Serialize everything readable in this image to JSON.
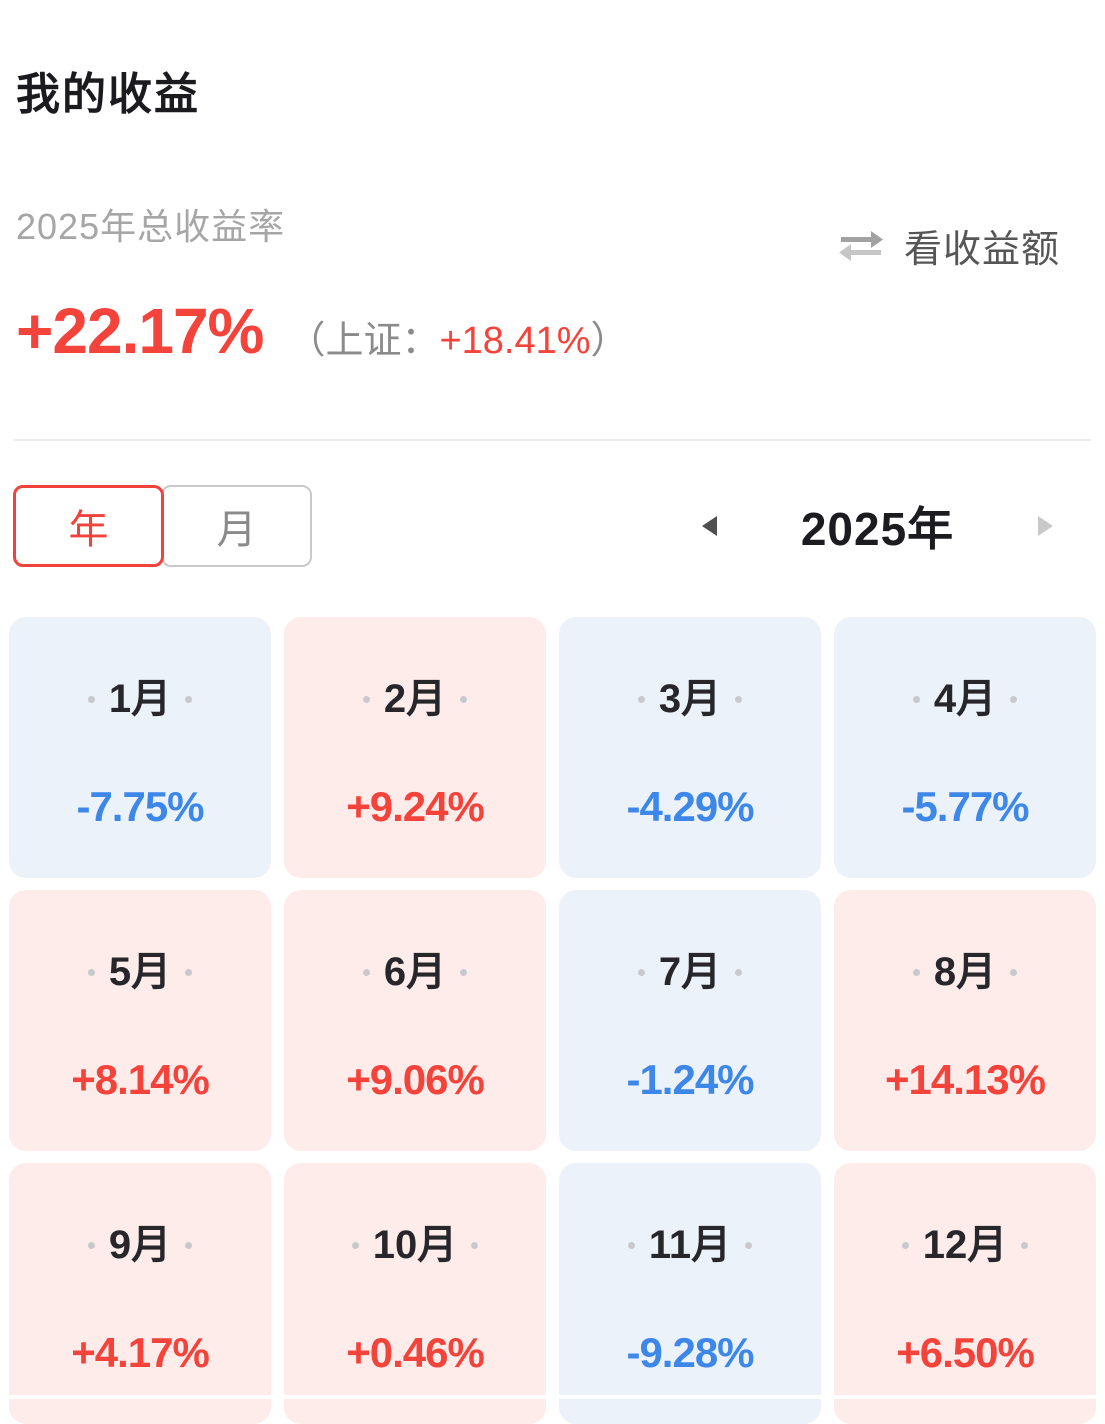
{
  "header": {
    "title": "我的收益",
    "subtitle": "2025年总收益率",
    "switch_label": "看收益额",
    "total_return": "+22.17%",
    "benchmark_prefix": "（上证：",
    "benchmark_value": "+18.41%",
    "benchmark_suffix": "）"
  },
  "controls": {
    "tab_year": "年",
    "tab_month": "月",
    "year_label": "2025年"
  },
  "colors": {
    "gain_red": "#f4433a",
    "loss_blue": "#3d87e8",
    "gain_bg": "#fdecea",
    "loss_bg": "#ecf2fa",
    "accent_red": "#f0433c"
  },
  "months": [
    {
      "label": "1月",
      "value": "-7.75%",
      "direction": "down"
    },
    {
      "label": "2月",
      "value": "+9.24%",
      "direction": "up"
    },
    {
      "label": "3月",
      "value": "-4.29%",
      "direction": "down"
    },
    {
      "label": "4月",
      "value": "-5.77%",
      "direction": "down"
    },
    {
      "label": "5月",
      "value": "+8.14%",
      "direction": "up"
    },
    {
      "label": "6月",
      "value": "+9.06%",
      "direction": "up"
    },
    {
      "label": "7月",
      "value": "-1.24%",
      "direction": "down"
    },
    {
      "label": "8月",
      "value": "+14.13%",
      "direction": "up"
    },
    {
      "label": "9月",
      "value": "+4.17%",
      "direction": "up"
    },
    {
      "label": "10月",
      "value": "+0.46%",
      "direction": "up"
    },
    {
      "label": "11月",
      "value": "-9.28%",
      "direction": "down"
    },
    {
      "label": "12月",
      "value": "+6.50%",
      "direction": "up"
    }
  ]
}
